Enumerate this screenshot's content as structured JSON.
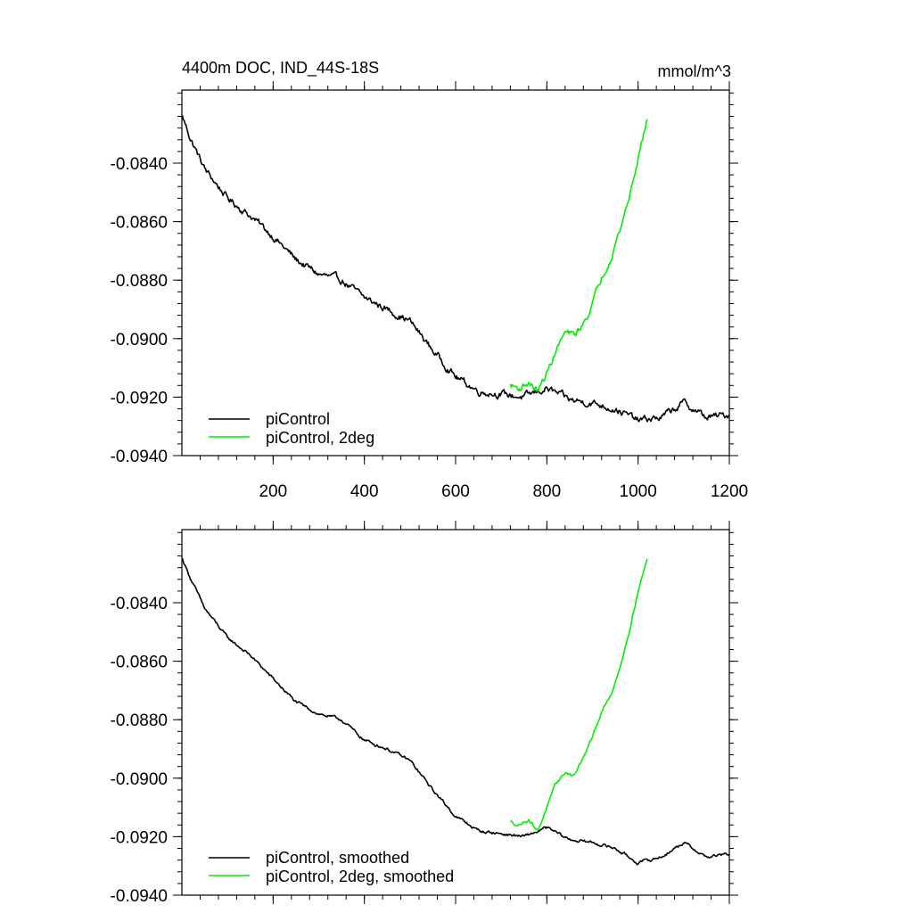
{
  "chart_data": [
    {
      "type": "line",
      "title": "4400m DOC, IND_44S-18S",
      "units": "mmol/m^3",
      "xlim": [
        0,
        1200
      ],
      "ylim": [
        -0.094,
        -0.0815
      ],
      "xticks": [
        200,
        400,
        600,
        800,
        1000,
        1200
      ],
      "xtick_labels": [
        "200",
        "400",
        "600",
        "800",
        "1000",
        "1200"
      ],
      "yticks": [
        -0.094,
        -0.092,
        -0.09,
        -0.088,
        -0.086,
        -0.084
      ],
      "ytick_labels": [
        "-0.0940",
        "-0.0920",
        "-0.0900",
        "-0.0880",
        "-0.0860",
        "-0.0840"
      ],
      "legend_position": "bottom-left",
      "series": [
        {
          "name": "piControl",
          "color": "#000000",
          "noise": 0.00018,
          "x": [
            1,
            20,
            50,
            100,
            150,
            200,
            250,
            300,
            350,
            400,
            450,
            500,
            550,
            600,
            650,
            700,
            750,
            800,
            850,
            900,
            950,
            1000,
            1050,
            1100,
            1150,
            1200
          ],
          "y": [
            -0.0824,
            -0.0832,
            -0.0842,
            -0.0852,
            -0.0858,
            -0.0865,
            -0.0873,
            -0.0878,
            -0.088,
            -0.0886,
            -0.089,
            -0.0894,
            -0.0904,
            -0.0913,
            -0.0918,
            -0.0919,
            -0.092,
            -0.0917,
            -0.0921,
            -0.0922,
            -0.0924,
            -0.0928,
            -0.0927,
            -0.0922,
            -0.0927,
            -0.0926
          ]
        },
        {
          "name": "piControl, 2deg",
          "color": "#00ee00",
          "noise": 0.00018,
          "x": [
            720,
            740,
            760,
            780,
            800,
            820,
            840,
            860,
            880,
            900,
            920,
            940,
            960,
            980,
            1000,
            1020
          ],
          "y": [
            -0.0916,
            -0.0917,
            -0.0915,
            -0.0918,
            -0.0912,
            -0.0904,
            -0.0898,
            -0.0899,
            -0.0895,
            -0.0888,
            -0.0879,
            -0.0872,
            -0.0863,
            -0.0852,
            -0.0838,
            -0.0825
          ]
        }
      ]
    },
    {
      "type": "line",
      "title": "",
      "units": "",
      "xlim": [
        0,
        1200
      ],
      "ylim": [
        -0.094,
        -0.0815
      ],
      "xticks": [
        200,
        400,
        600,
        800,
        1000,
        1200
      ],
      "xtick_labels": [],
      "yticks": [
        -0.094,
        -0.092,
        -0.09,
        -0.088,
        -0.086,
        -0.084
      ],
      "ytick_labels": [
        "-0.0940",
        "-0.0920",
        "-0.0900",
        "-0.0880",
        "-0.0860",
        "-0.0840"
      ],
      "legend_position": "bottom-left",
      "series": [
        {
          "name": "piControl, smoothed",
          "color": "#000000",
          "noise": 8e-05,
          "x": [
            1,
            20,
            50,
            100,
            150,
            200,
            250,
            300,
            350,
            400,
            450,
            500,
            550,
            600,
            650,
            700,
            750,
            800,
            850,
            900,
            950,
            1000,
            1050,
            1100,
            1150,
            1200
          ],
          "y": [
            -0.0825,
            -0.0832,
            -0.0842,
            -0.0852,
            -0.0858,
            -0.0866,
            -0.0874,
            -0.0878,
            -0.088,
            -0.0887,
            -0.089,
            -0.0894,
            -0.0904,
            -0.0913,
            -0.0918,
            -0.0919,
            -0.092,
            -0.0917,
            -0.0921,
            -0.0922,
            -0.0924,
            -0.0929,
            -0.0927,
            -0.0922,
            -0.0927,
            -0.0926
          ]
        },
        {
          "name": "piControl, 2deg, smoothed",
          "color": "#00ee00",
          "noise": 8e-05,
          "x": [
            720,
            740,
            760,
            780,
            800,
            820,
            840,
            860,
            880,
            900,
            920,
            940,
            960,
            980,
            1000,
            1020
          ],
          "y": [
            -0.0915,
            -0.0916,
            -0.0914,
            -0.0918,
            -0.091,
            -0.0902,
            -0.0898,
            -0.0899,
            -0.0893,
            -0.0886,
            -0.0877,
            -0.0872,
            -0.0862,
            -0.085,
            -0.0836,
            -0.0825
          ]
        }
      ]
    }
  ]
}
